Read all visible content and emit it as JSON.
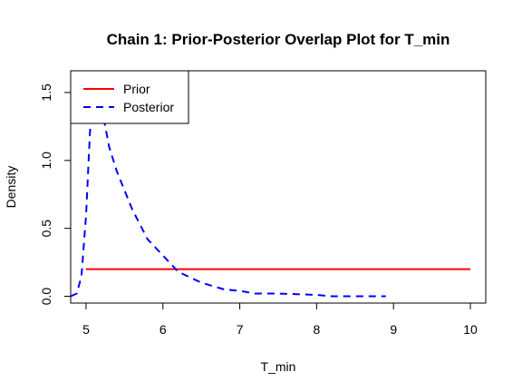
{
  "chart_data": {
    "type": "line",
    "title": "Chain 1: Prior-Posterior Overlap Plot for T_min",
    "xlabel": "T_min",
    "ylabel": "Density",
    "xlim": [
      4.8,
      10.2
    ],
    "ylim": [
      -0.05,
      1.66
    ],
    "x_ticks": [
      "5",
      "6",
      "7",
      "8",
      "9",
      "10"
    ],
    "y_ticks": [
      "0.0",
      "0.5",
      "1.0",
      "1.5"
    ],
    "grid": false,
    "legend_position": "top-left",
    "series": [
      {
        "name": "Prior",
        "color": "#ff0000",
        "dash": "solid",
        "x": [
          5.0,
          10.0
        ],
        "y": [
          0.2,
          0.2
        ]
      },
      {
        "name": "Posterior",
        "color": "#0000ff",
        "dash": "dashed",
        "x": [
          4.8,
          4.88,
          4.94,
          5.0,
          5.05,
          5.1,
          5.15,
          5.2,
          5.3,
          5.4,
          5.5,
          5.6,
          5.8,
          6.0,
          6.2,
          6.5,
          6.8,
          7.0,
          7.2,
          7.5,
          8.0,
          8.2,
          8.5,
          8.9
        ],
        "y": [
          0.0,
          0.02,
          0.15,
          0.6,
          1.2,
          1.6,
          1.66,
          1.4,
          1.1,
          0.92,
          0.78,
          0.64,
          0.42,
          0.3,
          0.18,
          0.1,
          0.05,
          0.04,
          0.02,
          0.02,
          0.01,
          0.0,
          0.0,
          0.0
        ]
      }
    ]
  }
}
